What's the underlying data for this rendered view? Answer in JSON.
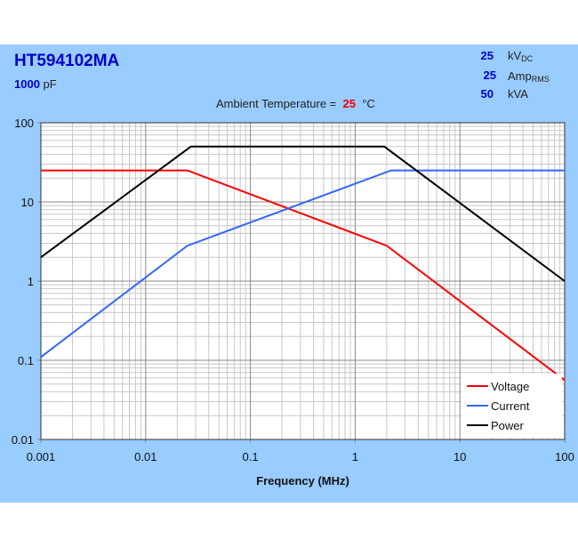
{
  "header": {
    "part_number": "HT594102MA",
    "capacitance_value": "1000",
    "capacitance_unit": "pF",
    "ambient_label": "Ambient Temperature =",
    "ambient_value": "25",
    "ambient_unit": "°C",
    "specs": [
      {
        "value": "25",
        "unit": "kV",
        "sub": "DC"
      },
      {
        "value": "25",
        "unit": "Amp",
        "sub": "RMS"
      },
      {
        "value": "50",
        "unit": "kVA",
        "sub": ""
      }
    ]
  },
  "colors": {
    "background": "#99ccff",
    "voltage": "#ff0000",
    "current": "#3366ff",
    "power": "#000000",
    "title": "#0000cc"
  },
  "chart_data": {
    "type": "line",
    "xlabel": "Frequency (MHz)",
    "ylabel": "",
    "xscale": "log",
    "yscale": "log",
    "xlim": [
      0.001,
      100
    ],
    "ylim": [
      0.01,
      100
    ],
    "xticks": [
      "0.001",
      "0.01",
      "0.1",
      "1",
      "10",
      "100"
    ],
    "yticks": [
      "0.01",
      "0.1",
      "1",
      "10",
      "100"
    ],
    "grid": true,
    "legend": "bottom-right",
    "series": [
      {
        "name": "Voltage",
        "color": "#ff0000",
        "points": [
          [
            0.001,
            25
          ],
          [
            0.025,
            25
          ],
          [
            2,
            2.8
          ],
          [
            100,
            0.056
          ]
        ]
      },
      {
        "name": "Current",
        "color": "#3366ff",
        "points": [
          [
            0.001,
            0.11
          ],
          [
            0.025,
            2.8
          ],
          [
            2.2,
            25
          ],
          [
            100,
            25
          ]
        ]
      },
      {
        "name": "Power",
        "color": "#000000",
        "points": [
          [
            0.001,
            2
          ],
          [
            0.027,
            50
          ],
          [
            1.9,
            50
          ],
          [
            100,
            1
          ]
        ]
      }
    ]
  }
}
